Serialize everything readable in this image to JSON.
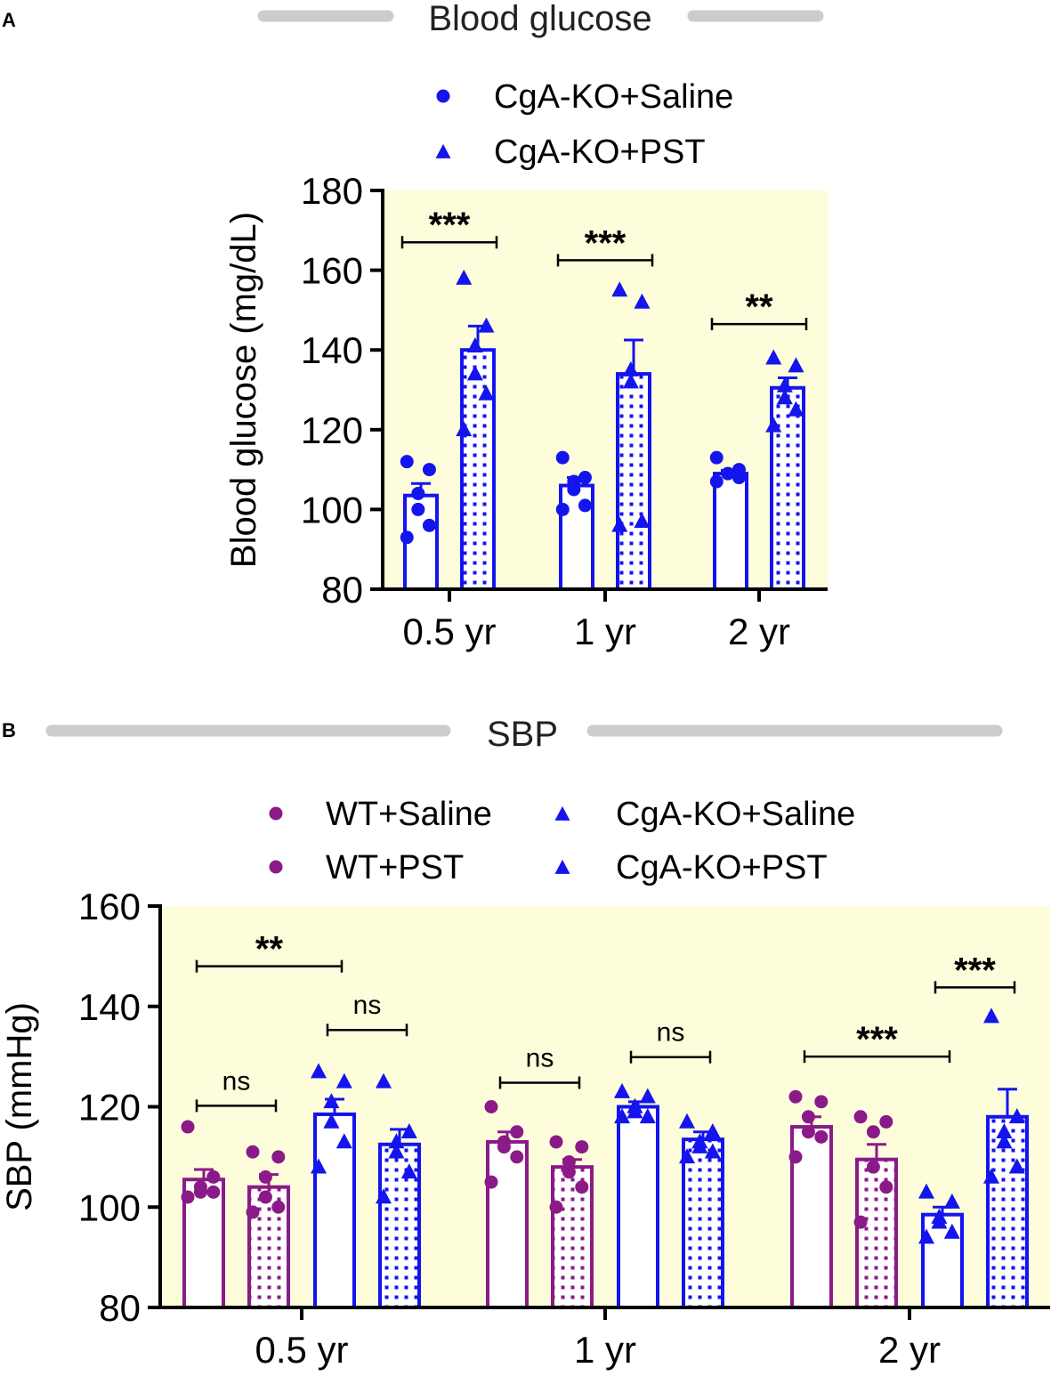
{
  "chart_data": [
    {
      "panel_label": "A",
      "type": "bar",
      "title": "Blood glucose",
      "ylabel": "Blood glucose (mg/dL)",
      "xlabel": "",
      "ylim": [
        80,
        180
      ],
      "yticks": [
        80,
        100,
        120,
        140,
        160,
        180
      ],
      "categories": [
        "0.5 yr",
        "1 yr",
        "2 yr"
      ],
      "legend": [
        {
          "label": "CgA-KO+Saline",
          "marker": "circle",
          "color": "#1414ee"
        },
        {
          "label": "CgA-KO+PST",
          "marker": "triangle",
          "color": "#1414ee"
        }
      ],
      "series": [
        {
          "name": "CgA-KO+Saline",
          "color": "#1414ee",
          "pattern": "none",
          "marker": "circle",
          "values": [
            103.5,
            106,
            109
          ],
          "sem": [
            3,
            2,
            0.8
          ],
          "points": [
            [
              112,
              110,
              104,
              100,
              96,
              93
            ],
            [
              113,
              108,
              107,
              105,
              101,
              100
            ],
            [
              113,
              110,
              109,
              109,
              108,
              107
            ]
          ]
        },
        {
          "name": "CgA-KO+PST",
          "color": "#1414ee",
          "pattern": "dots",
          "marker": "triangle",
          "values": [
            140,
            134,
            130.5
          ],
          "sem": [
            6,
            8.5,
            2.5
          ],
          "points": [
            [
              158,
              146,
              141,
              134,
              129,
              120
            ],
            [
              155,
              152,
              135,
              132,
              97,
              96
            ],
            [
              138,
              136,
              131,
              128,
              125,
              121
            ]
          ]
        }
      ],
      "significance": [
        {
          "category": "0.5 yr",
          "label": "***",
          "y": 167
        },
        {
          "category": "1 yr",
          "label": "***",
          "y": 162.5
        },
        {
          "category": "2 yr",
          "label": "**",
          "y": 146.5
        }
      ],
      "background": "#fdfddc"
    },
    {
      "panel_label": "B",
      "type": "bar",
      "title": "SBP",
      "ylabel": "SBP (mmHg)",
      "xlabel": "",
      "ylim": [
        80,
        160
      ],
      "yticks": [
        80,
        100,
        120,
        140,
        160
      ],
      "categories": [
        "0.5 yr",
        "1 yr",
        "2 yr"
      ],
      "legend": [
        {
          "label": "WT+Saline",
          "marker": "circle",
          "color": "#8b1a89"
        },
        {
          "label": "WT+PST",
          "marker": "circle",
          "color": "#8b1a89"
        },
        {
          "label": "CgA-KO+Saline",
          "marker": "triangle",
          "color": "#1414ee"
        },
        {
          "label": "CgA-KO+PST",
          "marker": "triangle",
          "color": "#1414ee"
        }
      ],
      "series": [
        {
          "name": "WT+Saline",
          "color": "#8b1a89",
          "pattern": "none",
          "marker": "circle",
          "values": [
            105.5,
            113,
            116
          ],
          "sem": [
            2,
            2,
            2
          ],
          "points": [
            [
              116,
              106,
              104,
              103,
              103,
              102
            ],
            [
              120,
              115,
              113,
              112,
              110,
              105
            ],
            [
              122,
              121,
              118,
              115,
              114,
              110
            ]
          ]
        },
        {
          "name": "WT+PST",
          "color": "#8b1a89",
          "pattern": "dots",
          "marker": "circle",
          "values": [
            104,
            108,
            109.5
          ],
          "sem": [
            2.5,
            1.5,
            3
          ],
          "points": [
            [
              111,
              110,
              106,
              102,
              100,
              99
            ],
            [
              113,
              112,
              109,
              107,
              104,
              100
            ],
            [
              118,
              117,
              115,
              108,
              104,
              97
            ]
          ]
        },
        {
          "name": "CgA-KO+Saline",
          "color": "#1414ee",
          "pattern": "none",
          "marker": "triangle",
          "values": [
            118.5,
            120,
            98.5
          ],
          "sem": [
            3,
            1,
            1.5
          ],
          "points": [
            [
              127,
              125,
              121,
              117,
              113,
              108
            ],
            [
              123,
              122,
              120,
              119,
              118,
              118
            ],
            [
              103,
              101,
              98,
              97,
              95,
              94
            ]
          ]
        },
        {
          "name": "CgA-KO+PST",
          "color": "#1414ee",
          "pattern": "dots",
          "marker": "triangle",
          "values": [
            112.5,
            113.5,
            118
          ],
          "sem": [
            3,
            1.5,
            5.5
          ],
          "points": [
            [
              125,
              115,
              113,
              111,
              107,
              102
            ],
            [
              117,
              115,
              113,
              112,
              111,
              110
            ],
            [
              138,
              118,
              115,
              113,
              108,
              106
            ]
          ]
        }
      ],
      "significance": [
        {
          "from": 0,
          "to": 2,
          "group": "0.5 yr",
          "label": "**",
          "y": 148
        },
        {
          "from": 0,
          "to": 1,
          "group": "0.5 yr",
          "label": "ns",
          "y": 120.2
        },
        {
          "from": 2,
          "to": 3,
          "group": "0.5 yr",
          "label": "ns",
          "y": 135.3
        },
        {
          "from": 0,
          "to": 1,
          "group": "1 yr",
          "label": "ns",
          "y": 124.8
        },
        {
          "from": 2,
          "to": 3,
          "group": "1 yr",
          "label": "ns",
          "y": 129.9
        },
        {
          "from": 0,
          "to": 2,
          "group": "2 yr",
          "label": "***",
          "y": 130
        },
        {
          "from": 2,
          "to": 3,
          "group": "2 yr",
          "label": "***",
          "y": 143.8
        }
      ],
      "background": "#fdfddc"
    }
  ]
}
